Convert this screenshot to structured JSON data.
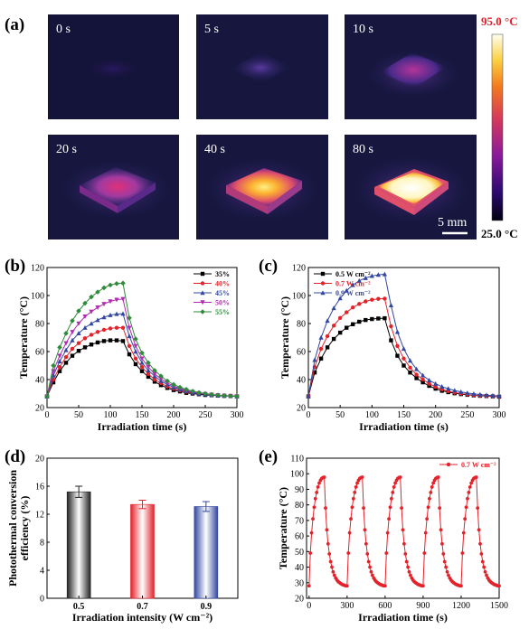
{
  "panel_labels": [
    "(a)",
    "(b)",
    "(c)",
    "(d)",
    "(e)"
  ],
  "panel_a": {
    "times": [
      "0 s",
      "5 s",
      "10 s",
      "20 s",
      "40 s",
      "80 s"
    ],
    "colorbar_max": "95.0 °C",
    "colorbar_min": "25.0 °C",
    "scale_bar": "5 mm",
    "colors": {
      "max_label": "#e0202a",
      "min_label": "#000000"
    }
  },
  "chart_data": [
    {
      "type": "line",
      "panel": "(b)",
      "xlabel": "Irradiation time (s)",
      "ylabel": "Temperature (°C)",
      "xlim": [
        0,
        300
      ],
      "ylim": [
        20,
        120
      ],
      "xticks": [
        0,
        50,
        100,
        150,
        200,
        250,
        300
      ],
      "yticks": [
        20,
        40,
        60,
        80,
        100,
        120
      ],
      "legend_position": "top-right",
      "x": [
        0,
        10,
        20,
        30,
        40,
        50,
        60,
        70,
        80,
        90,
        100,
        110,
        120,
        130,
        140,
        150,
        160,
        170,
        180,
        190,
        200,
        210,
        220,
        230,
        240,
        250,
        260,
        270,
        280,
        290,
        300
      ],
      "series": [
        {
          "name": "35%",
          "color": "#000000",
          "marker": "square",
          "values": [
            28,
            38,
            46,
            52,
            57,
            60.5,
            63,
            65,
            66.5,
            67.5,
            68,
            68,
            67.5,
            58,
            51,
            46,
            42,
            38.5,
            36,
            34,
            32.5,
            31.5,
            30.5,
            30,
            29.5,
            29,
            28.8,
            28.5,
            28.3,
            28.2,
            28
          ]
        },
        {
          "name": "40%",
          "color": "#e3222a",
          "marker": "circle",
          "values": [
            28,
            40,
            49,
            56,
            62,
            66,
            69.5,
            72,
            74,
            75.5,
            76.5,
            77,
            77,
            64,
            55,
            49,
            44,
            40,
            37.5,
            35,
            33.5,
            32.3,
            31.3,
            30.5,
            30,
            29.5,
            29,
            28.8,
            28.6,
            28.4,
            28.2
          ]
        },
        {
          "name": "45%",
          "color": "#3147a0",
          "marker": "triangle",
          "values": [
            28,
            43,
            53,
            61,
            68,
            73,
            77,
            80,
            82.5,
            84.5,
            86,
            86.8,
            87,
            71,
            60,
            52,
            46.5,
            42.5,
            39,
            36.5,
            34.5,
            33,
            31.8,
            30.8,
            30,
            29.5,
            29,
            28.7,
            28.5,
            28.3,
            28.1
          ]
        },
        {
          "name": "50%",
          "color": "#b02cb0",
          "marker": "triangle-down",
          "values": [
            28,
            46,
            57,
            66,
            74,
            80,
            85,
            88.5,
            91.5,
            94,
            95.8,
            97,
            97.5,
            77,
            64,
            55,
            49,
            44,
            40.5,
            37.5,
            35.5,
            33.7,
            32.3,
            31.2,
            30.3,
            29.7,
            29.2,
            28.8,
            28.5,
            28.3,
            28
          ]
        },
        {
          "name": "55%",
          "color": "#2e8b3a",
          "marker": "diamond",
          "values": [
            28,
            50,
            63,
            73,
            82,
            89,
            94.5,
            99,
            102.5,
            105.5,
            107.5,
            108.5,
            108.8,
            84,
            69,
            59,
            52,
            46.5,
            42.5,
            39,
            36.5,
            34.5,
            33,
            31.7,
            30.7,
            30,
            29.4,
            28.9,
            28.6,
            28.3,
            28.1
          ]
        }
      ]
    },
    {
      "type": "line",
      "panel": "(c)",
      "xlabel": "Irradiation time (s)",
      "ylabel": "Temperature (°C)",
      "xlim": [
        0,
        300
      ],
      "ylim": [
        20,
        120
      ],
      "xticks": [
        0,
        50,
        100,
        150,
        200,
        250,
        300
      ],
      "yticks": [
        20,
        40,
        60,
        80,
        100,
        120
      ],
      "legend_position": "top-left",
      "x": [
        0,
        10,
        20,
        30,
        40,
        50,
        60,
        70,
        80,
        90,
        100,
        110,
        120,
        130,
        140,
        150,
        160,
        170,
        180,
        190,
        200,
        210,
        220,
        230,
        240,
        250,
        260,
        270,
        280,
        290,
        300
      ],
      "series": [
        {
          "name": "0.5 W cm⁻²",
          "color": "#000000",
          "marker": "square",
          "values": [
            28,
            45,
            55,
            63,
            69,
            73.5,
            77,
            79.5,
            81.3,
            82.5,
            83.2,
            83.6,
            83.8,
            68,
            57,
            50,
            45,
            41,
            38,
            35.5,
            33.5,
            32,
            31,
            30.2,
            29.6,
            29.1,
            28.7,
            28.4,
            28.2,
            28,
            27.8
          ]
        },
        {
          "name": "0.7 W cm⁻²",
          "color": "#e3222a",
          "marker": "circle",
          "values": [
            28,
            49,
            62,
            71,
            78.5,
            84,
            88,
            91.5,
            94,
            95.8,
            97,
            97.6,
            97.8,
            78,
            64,
            55,
            48.5,
            43.5,
            40,
            37,
            34.8,
            33,
            31.7,
            30.7,
            30,
            29.4,
            28.9,
            28.6,
            28.3,
            28.1,
            27.9
          ]
        },
        {
          "name": "0.9 W cm⁻²",
          "color": "#3147a0",
          "marker": "triangle",
          "values": [
            28,
            54,
            70,
            82,
            91,
            98,
            103.5,
            107.5,
            110.5,
            112.5,
            114,
            114.8,
            115.2,
            93,
            74,
            62,
            53.5,
            47.5,
            43,
            39.5,
            37,
            35,
            33.5,
            32.2,
            31.2,
            30.4,
            29.8,
            29.3,
            28.9,
            28.6,
            28.3
          ]
        }
      ]
    },
    {
      "type": "bar",
      "panel": "(d)",
      "xlabel": "Irradiation intensity (W cm⁻²)",
      "ylabel_line1": "Photothermal conversion",
      "ylabel_line2": "efficiency (%)",
      "categories": [
        "0.5",
        "0.7",
        "0.9"
      ],
      "values": [
        15.2,
        13.4,
        13.1
      ],
      "errors": [
        0.8,
        0.6,
        0.7
      ],
      "colors": [
        "#222222",
        "#e3222a",
        "#3147a0"
      ],
      "ylim": [
        0,
        20
      ],
      "yticks": [
        0,
        4,
        8,
        12,
        16,
        20
      ]
    },
    {
      "type": "line",
      "panel": "(e)",
      "xlabel": "Irradiation time (s)",
      "ylabel": "Temperature (°C)",
      "xlim": [
        -20,
        1500
      ],
      "ylim": [
        20,
        110
      ],
      "xticks": [
        0,
        300,
        600,
        900,
        1200,
        1500
      ],
      "yticks": [
        20,
        30,
        40,
        50,
        60,
        70,
        80,
        90,
        100,
        110
      ],
      "legend_position": "top-right",
      "series": [
        {
          "name": "0.7 W cm⁻²",
          "color": "#e3222a",
          "marker": "circle",
          "cycle_period": 300,
          "cycle_times": [
            0,
            10,
            20,
            30,
            40,
            50,
            60,
            70,
            80,
            90,
            100,
            110,
            120,
            130,
            140,
            150,
            160,
            170,
            180,
            190,
            200,
            210,
            220,
            230,
            240,
            250,
            260,
            270,
            280,
            290
          ],
          "cycle_values": [
            28,
            49,
            62,
            71,
            78.5,
            84,
            88,
            91.5,
            94,
            95.8,
            97,
            97.6,
            97.8,
            78,
            64,
            55,
            48.5,
            43.5,
            40,
            37,
            34.8,
            33,
            31.7,
            30.7,
            30,
            29.4,
            28.9,
            28.6,
            28.3,
            28
          ],
          "cycles": 5
        }
      ]
    }
  ]
}
